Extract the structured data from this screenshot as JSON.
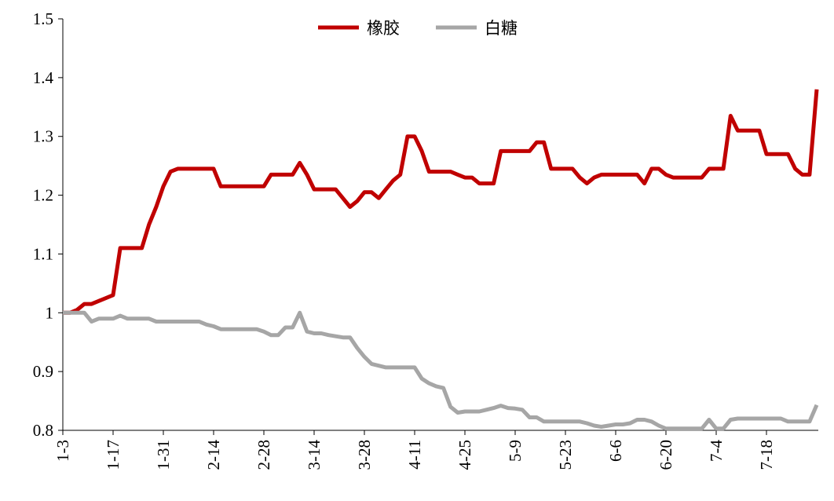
{
  "chart_data": {
    "type": "line",
    "categories": [
      "1-3",
      null,
      null,
      null,
      null,
      null,
      null,
      "1-17",
      null,
      null,
      null,
      null,
      null,
      null,
      "1-31",
      null,
      null,
      null,
      null,
      null,
      null,
      "2-14",
      null,
      null,
      null,
      null,
      null,
      null,
      "2-28",
      null,
      null,
      null,
      null,
      null,
      null,
      "3-14",
      null,
      null,
      null,
      null,
      null,
      null,
      "3-28",
      null,
      null,
      null,
      null,
      null,
      null,
      "4-11",
      null,
      null,
      null,
      null,
      null,
      null,
      "4-25",
      null,
      null,
      null,
      null,
      null,
      null,
      "5-9",
      null,
      null,
      null,
      null,
      null,
      null,
      "5-23",
      null,
      null,
      null,
      null,
      null,
      null,
      "6-6",
      null,
      null,
      null,
      null,
      null,
      null,
      "6-20",
      null,
      null,
      null,
      null,
      null,
      null,
      "7-4",
      null,
      null,
      null,
      null,
      null,
      null,
      "7-18",
      null,
      null,
      null,
      null,
      null,
      null,
      null
    ],
    "series": [
      {
        "name": "橡胶",
        "color": "#c00000",
        "values": [
          1.0,
          1.0,
          1.005,
          1.015,
          1.015,
          1.02,
          1.025,
          1.03,
          1.11,
          1.11,
          1.11,
          1.11,
          1.15,
          1.18,
          1.215,
          1.24,
          1.245,
          1.245,
          1.245,
          1.245,
          1.245,
          1.245,
          1.215,
          1.215,
          1.215,
          1.215,
          1.215,
          1.215,
          1.215,
          1.235,
          1.235,
          1.235,
          1.235,
          1.255,
          1.235,
          1.21,
          1.21,
          1.21,
          1.21,
          1.195,
          1.18,
          1.19,
          1.205,
          1.205,
          1.195,
          1.21,
          1.225,
          1.235,
          1.3,
          1.3,
          1.275,
          1.24,
          1.24,
          1.24,
          1.24,
          1.235,
          1.23,
          1.23,
          1.22,
          1.22,
          1.22,
          1.275,
          1.275,
          1.275,
          1.275,
          1.275,
          1.29,
          1.29,
          1.245,
          1.245,
          1.245,
          1.245,
          1.23,
          1.22,
          1.23,
          1.235,
          1.235,
          1.235,
          1.235,
          1.235,
          1.235,
          1.22,
          1.245,
          1.245,
          1.235,
          1.23,
          1.23,
          1.23,
          1.23,
          1.23,
          1.245,
          1.245,
          1.245,
          1.335,
          1.31,
          1.31,
          1.31,
          1.31,
          1.27,
          1.27,
          1.27,
          1.27,
          1.245,
          1.235,
          1.235,
          1.38
        ]
      },
      {
        "name": "白糖",
        "color": "#a6a6a6",
        "values": [
          1.0,
          1.0,
          1.0,
          1.0,
          0.985,
          0.99,
          0.99,
          0.99,
          0.995,
          0.99,
          0.99,
          0.99,
          0.99,
          0.985,
          0.985,
          0.985,
          0.985,
          0.985,
          0.985,
          0.985,
          0.98,
          0.977,
          0.972,
          0.972,
          0.972,
          0.972,
          0.972,
          0.972,
          0.968,
          0.962,
          0.962,
          0.975,
          0.975,
          1.0,
          0.968,
          0.965,
          0.965,
          0.962,
          0.96,
          0.958,
          0.958,
          0.94,
          0.925,
          0.913,
          0.91,
          0.907,
          0.907,
          0.907,
          0.907,
          0.907,
          0.888,
          0.88,
          0.875,
          0.872,
          0.84,
          0.83,
          0.832,
          0.832,
          0.832,
          0.835,
          0.838,
          0.842,
          0.838,
          0.837,
          0.835,
          0.822,
          0.822,
          0.815,
          0.815,
          0.815,
          0.815,
          0.815,
          0.815,
          0.812,
          0.808,
          0.806,
          0.808,
          0.81,
          0.81,
          0.812,
          0.818,
          0.818,
          0.815,
          0.808,
          0.803,
          0.803,
          0.803,
          0.803,
          0.803,
          0.803,
          0.818,
          0.803,
          0.803,
          0.818,
          0.82,
          0.82,
          0.82,
          0.82,
          0.82,
          0.82,
          0.82,
          0.815,
          0.815,
          0.815,
          0.815,
          0.843
        ]
      }
    ],
    "ylim": [
      0.8,
      1.5
    ],
    "yticks": [
      0.8,
      0.9,
      1,
      1.1,
      1.2,
      1.3,
      1.4,
      1.5
    ],
    "grid": false,
    "legend": "top"
  }
}
